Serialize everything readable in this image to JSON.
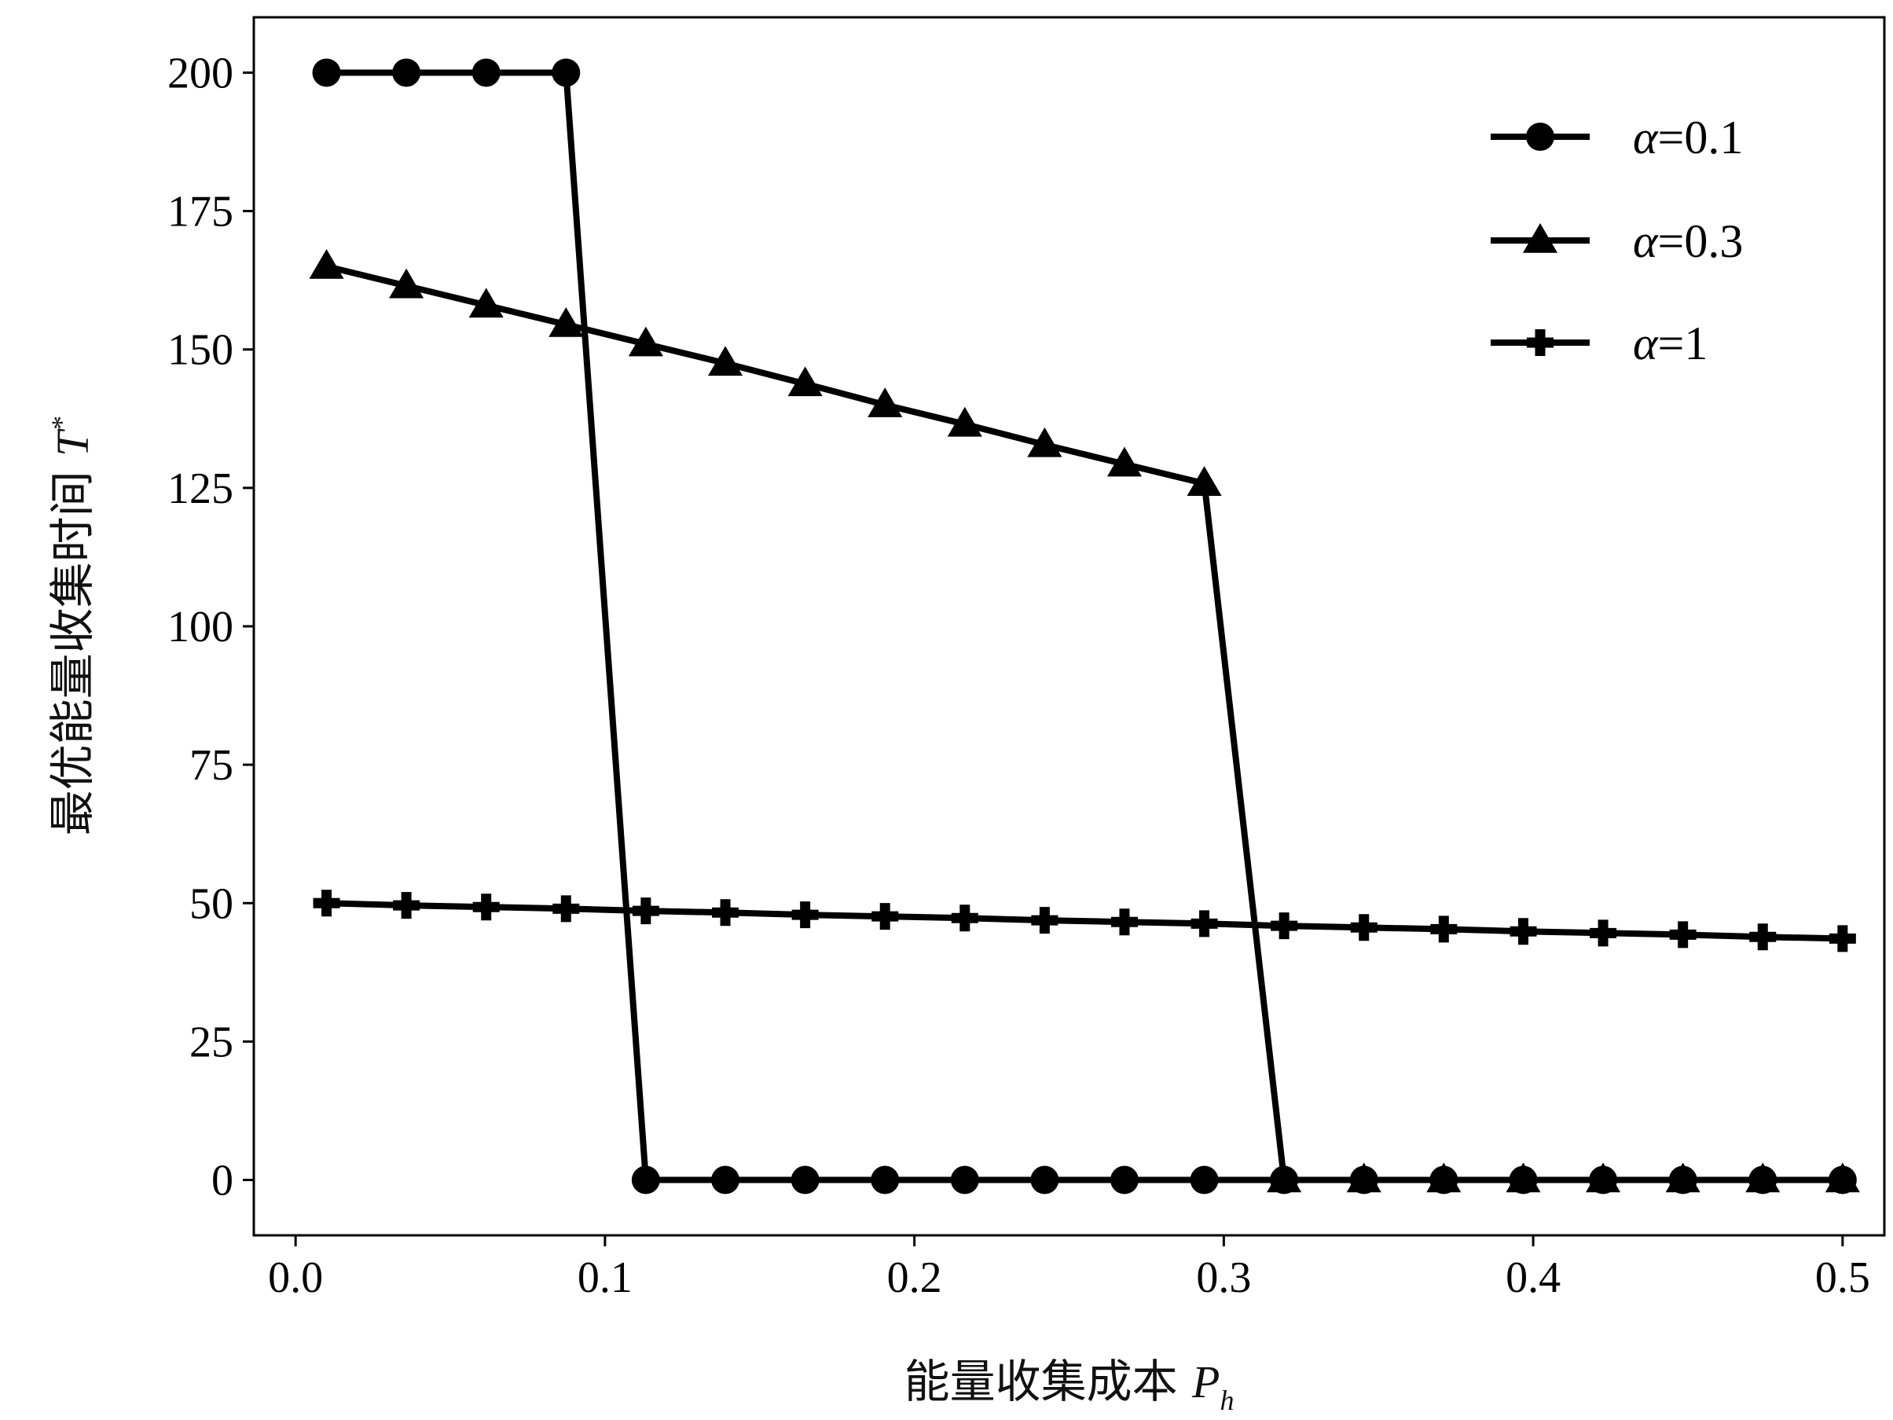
{
  "chart_data": {
    "type": "line",
    "title": "",
    "xlabel": {
      "text": "能量收集成本 ",
      "symbol": "P",
      "subscript": "h"
    },
    "ylabel": {
      "text": "最优能量收集时间 ",
      "symbol": "T",
      "superscript": "*"
    },
    "xlim": [
      -0.0135,
      0.5135
    ],
    "ylim": [
      -10,
      210
    ],
    "xticks": [
      0.0,
      0.1,
      0.2,
      0.3,
      0.4,
      0.5
    ],
    "xtick_labels": [
      "0.0",
      "0.1",
      "0.2",
      "0.3",
      "0.4",
      "0.5"
    ],
    "yticks": [
      0,
      25,
      50,
      75,
      100,
      125,
      150,
      175,
      200
    ],
    "ytick_labels": [
      "0",
      "25",
      "50",
      "75",
      "100",
      "125",
      "150",
      "175",
      "200"
    ],
    "grid": false,
    "legend_position": "top-right",
    "x": [
      0.01,
      0.0358,
      0.0616,
      0.0874,
      0.1132,
      0.1389,
      0.1647,
      0.1905,
      0.2163,
      0.2421,
      0.2679,
      0.2937,
      0.3195,
      0.3453,
      0.3711,
      0.3968,
      0.4226,
      0.4484,
      0.4742,
      0.5
    ],
    "series": [
      {
        "name": "α=0.1",
        "legend_symbol": "α",
        "legend_value": "=0.1",
        "marker": "circle",
        "color": "#000000",
        "values": [
          200,
          200,
          200,
          200,
          0,
          0,
          0,
          0,
          0,
          0,
          0,
          0,
          0,
          0,
          0,
          0,
          0,
          0,
          0,
          0
        ]
      },
      {
        "name": "α=0.3",
        "legend_symbol": "α",
        "legend_value": "=0.3",
        "marker": "triangle",
        "color": "#000000",
        "values": [
          165,
          161.5,
          158,
          154.5,
          151,
          147.5,
          143.8,
          140,
          136.5,
          132.8,
          129.3,
          125.8,
          0,
          0,
          0,
          0,
          0,
          0,
          0,
          0
        ]
      },
      {
        "name": "α=1",
        "legend_symbol": "α",
        "legend_value": "=1",
        "marker": "plus",
        "color": "#000000",
        "values": [
          50,
          49.6,
          49.3,
          49,
          48.6,
          48.3,
          47.9,
          47.6,
          47.3,
          46.9,
          46.6,
          46.3,
          45.9,
          45.6,
          45.3,
          44.9,
          44.6,
          44.3,
          43.9,
          43.6
        ]
      }
    ]
  }
}
